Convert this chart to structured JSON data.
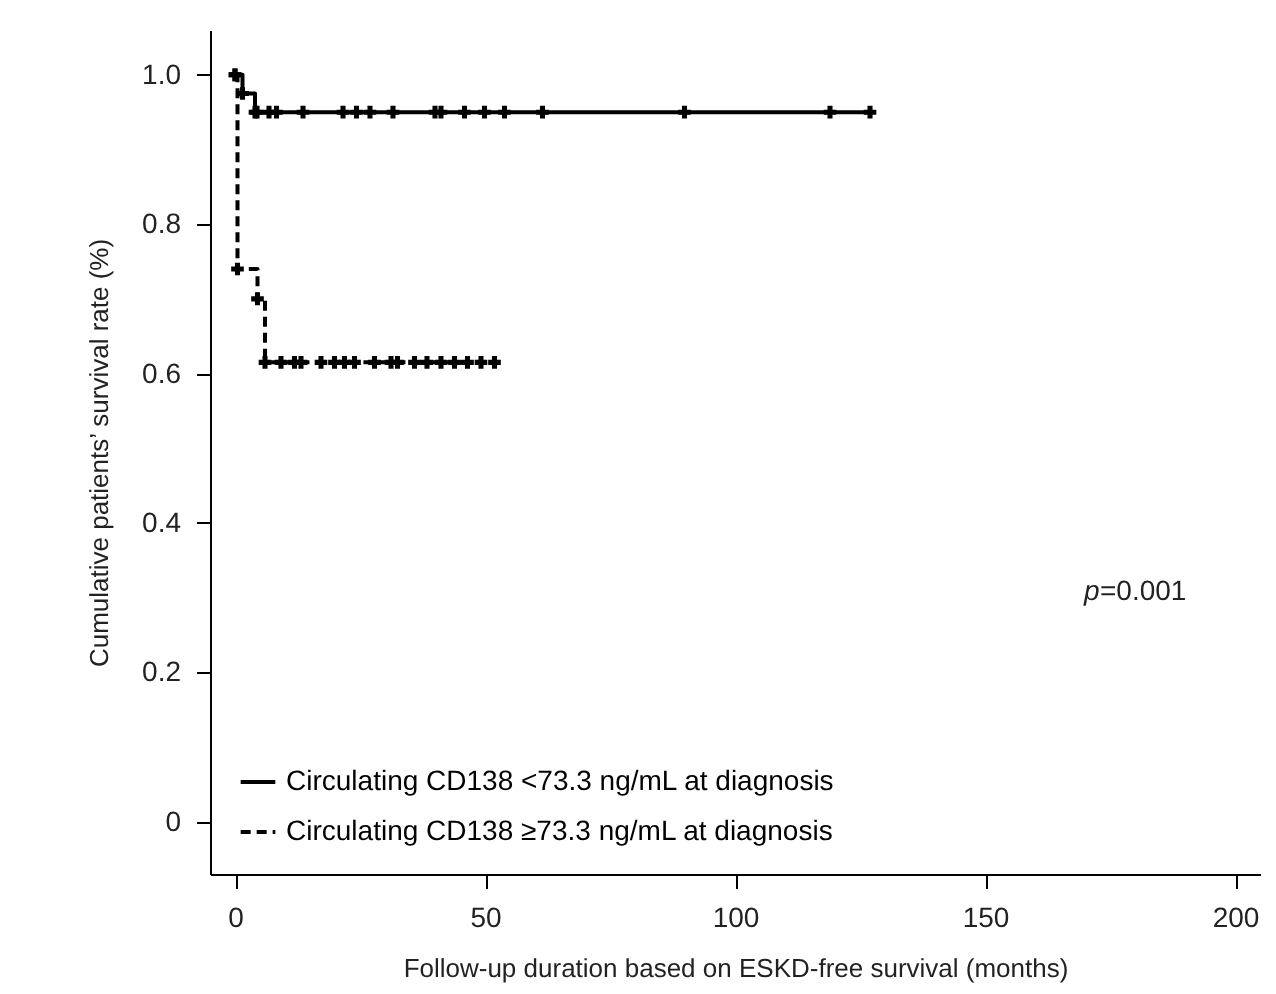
{
  "chart_data": {
    "type": "step",
    "xlabel": "Follow-up duration based on ESKD-free survival (months)",
    "ylabel": "Cumulative patients’ survival rate (%)",
    "xlim": [
      -5,
      205
    ],
    "xticks": [
      0,
      50,
      100,
      150,
      200
    ],
    "ylim": [
      -0.07,
      1.06
    ],
    "yticks": [
      {
        "value": 0,
        "label": "0"
      },
      0.2,
      0.4,
      0.6,
      0.8,
      {
        "value": 1,
        "label": "1.0"
      }
    ],
    "marker": "cross",
    "legend": "bottom left",
    "annotations": [
      "p=0.001"
    ],
    "series": [
      {
        "name": "Circulating CD138 <73.3 ng/mL at diagnosis",
        "color": "#000000",
        "line_style": "solid",
        "x": [
          0,
          1.5,
          4,
          4.4,
          6.8,
          8.3,
          13.6,
          21.6,
          24.3,
          27,
          31.6,
          40,
          41.2,
          45.9,
          49.9,
          53.9,
          61.5,
          89.9,
          119,
          127
        ],
        "values": [
          1.0,
          0.975,
          0.95,
          0.95,
          0.95,
          0.95,
          0.95,
          0.95,
          0.95,
          0.95,
          0.95,
          0.95,
          0.95,
          0.95,
          0.95,
          0.95,
          0.95,
          0.95,
          0.95,
          0.95
        ]
      },
      {
        "name": "Circulating CD138 ≥73.3 ng/mL at diagnosis",
        "color": "#000000",
        "line_style": "dashed",
        "x": [
          0,
          0.5,
          4.5,
          6,
          9.2,
          11.9,
          13.2,
          17.2,
          19.9,
          21.9,
          23.9,
          27.9,
          31.2,
          32.5,
          35.9,
          38.4,
          41.2,
          43.9,
          46.5,
          49.2,
          51.9
        ],
        "values": [
          1.0,
          0.74,
          0.7,
          0.615,
          0.615,
          0.615,
          0.615,
          0.615,
          0.615,
          0.615,
          0.615,
          0.615,
          0.615,
          0.615,
          0.615,
          0.615,
          0.615,
          0.615,
          0.615,
          0.615,
          0.615
        ]
      }
    ]
  }
}
